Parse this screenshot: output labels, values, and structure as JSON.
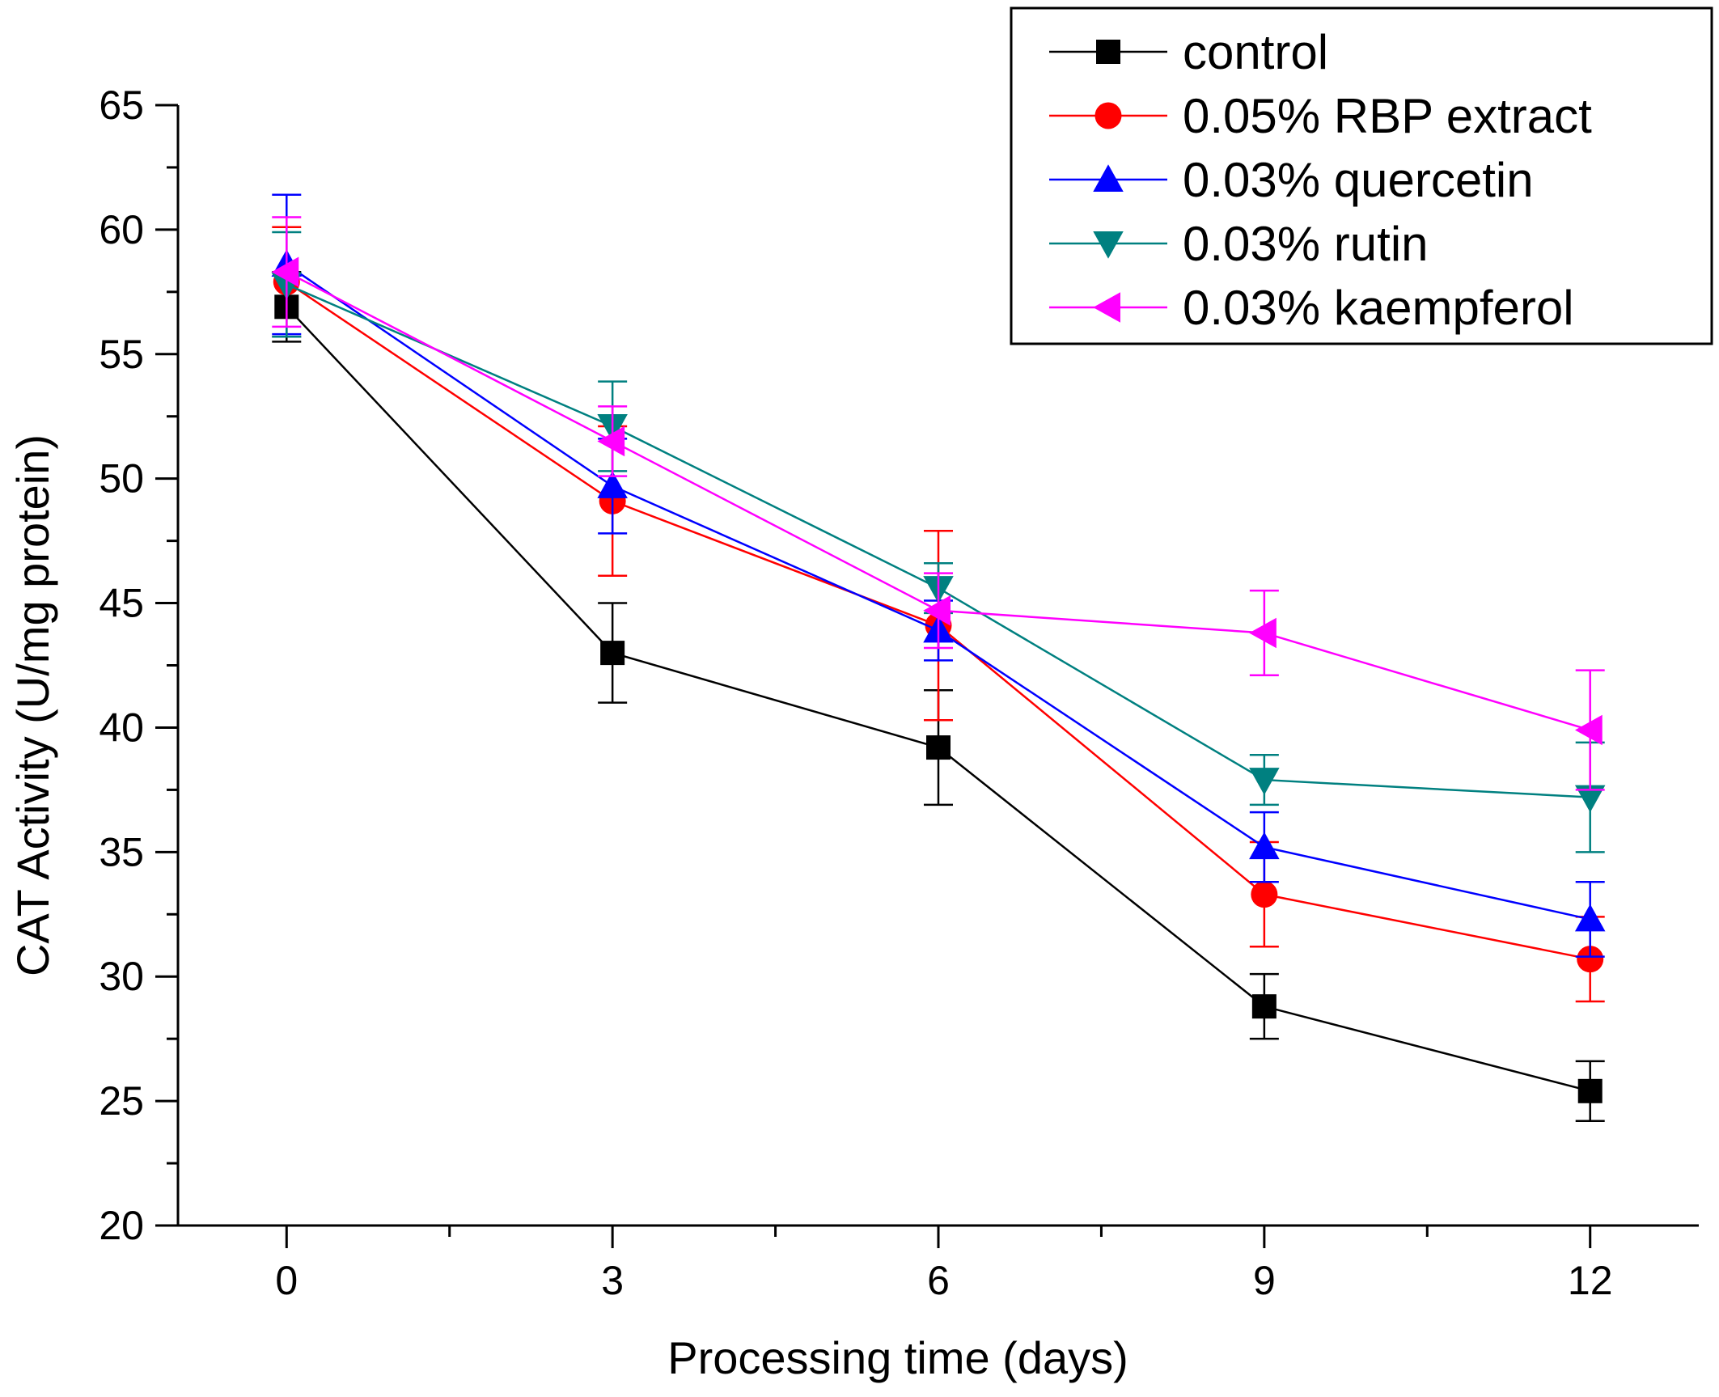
{
  "chart_data": {
    "type": "line",
    "title": "",
    "xlabel": "Processing time (days)",
    "ylabel": "CAT Activity (U/mg protein)",
    "x": [
      0,
      3,
      6,
      9,
      12
    ],
    "xlim": [
      -1,
      13
    ],
    "ylim": [
      20,
      65
    ],
    "xticks": [
      0,
      3,
      6,
      9,
      12
    ],
    "yticks": [
      20,
      25,
      30,
      35,
      40,
      45,
      50,
      55,
      60,
      65
    ],
    "grid": false,
    "legend_position": "top-right",
    "series": [
      {
        "name": "control",
        "color": "#000000",
        "marker": "square",
        "values": [
          56.9,
          43.0,
          39.2,
          28.8,
          25.4
        ],
        "errors": [
          1.4,
          2.0,
          2.3,
          1.3,
          1.2
        ]
      },
      {
        "name": "0.05% RBP extract",
        "color": "#ff0000",
        "marker": "circle",
        "values": [
          57.9,
          49.1,
          44.1,
          33.3,
          30.7
        ],
        "errors": [
          2.2,
          3.0,
          3.8,
          2.1,
          1.7
        ]
      },
      {
        "name": "0.03% quercetin",
        "color": "#0000ff",
        "marker": "triangle-up",
        "values": [
          58.6,
          49.7,
          43.9,
          35.2,
          32.3
        ],
        "errors": [
          2.8,
          1.9,
          1.2,
          1.4,
          1.5
        ]
      },
      {
        "name": "0.03% rutin",
        "color": "#008080",
        "marker": "triangle-down",
        "values": [
          57.8,
          52.1,
          45.6,
          37.9,
          37.2
        ],
        "errors": [
          2.1,
          1.8,
          1.0,
          1.0,
          2.2
        ]
      },
      {
        "name": "0.03% kaempferol",
        "color": "#ff00ff",
        "marker": "triangle-left",
        "values": [
          58.3,
          51.5,
          44.7,
          43.8,
          39.9
        ],
        "errors": [
          2.2,
          1.4,
          1.5,
          1.7,
          2.4
        ]
      }
    ]
  }
}
